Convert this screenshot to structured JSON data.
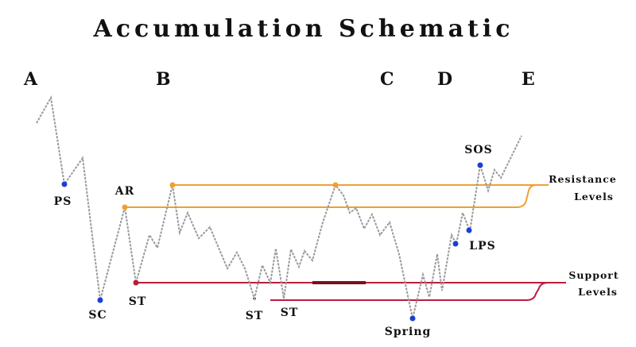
{
  "title": "Accumulation Schematic",
  "phases": [
    "A",
    "B",
    "C",
    "D",
    "E"
  ],
  "events": {
    "ps": "PS",
    "ar": "AR",
    "sc": "SC",
    "st1": "ST",
    "st2": "ST",
    "st3": "ST",
    "spring": "Spring",
    "lps": "LPS",
    "sos": "SOS"
  },
  "levels": {
    "resistance_line1": "Resistance",
    "resistance_line2": "Levels",
    "support_line1": "Support",
    "support_line2": "Levels"
  },
  "colors": {
    "price_line": "#9a9a9a",
    "resistance": "#f0a030",
    "support": "#b81e3c",
    "support_dark": "#7a0f20",
    "marker_blue": "#1a3fd6",
    "marker_orange": "#f0a030",
    "marker_red": "#b81e3c",
    "text": "#111111"
  }
}
